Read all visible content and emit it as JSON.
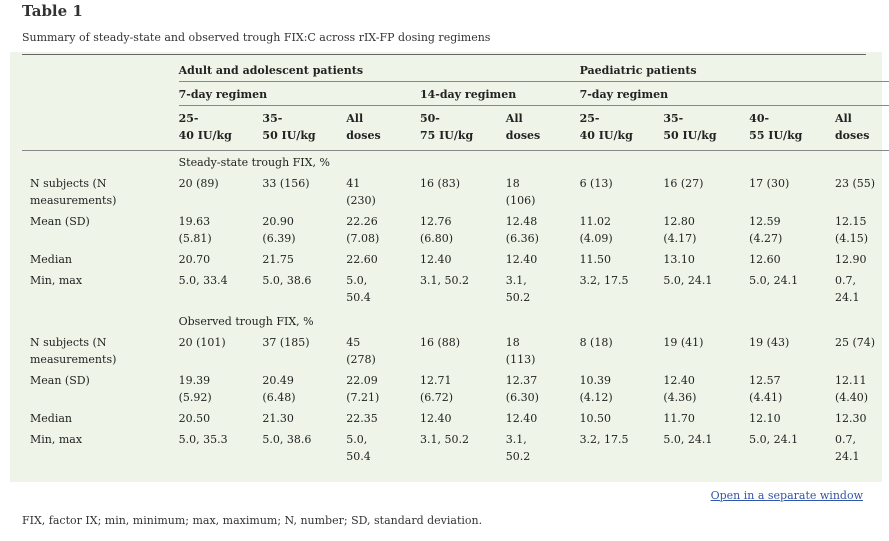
{
  "title": "Table 1",
  "caption": "Summary of steady-state and observed trough FIX:C across rIX-FP dosing regimens",
  "groups": {
    "adult": "Adult and adolescent patients",
    "paed": "Paediatric patients"
  },
  "regimens": {
    "adult_7": "7-day regimen",
    "adult_14": "14-day regimen",
    "paed_7": "7-day regimen"
  },
  "columns": [
    [
      "25-",
      "40 IU/kg"
    ],
    [
      "35-",
      "50 IU/kg"
    ],
    [
      "All",
      "doses"
    ],
    [
      "50-",
      "75 IU/kg"
    ],
    [
      "All",
      "doses"
    ],
    [
      "25-",
      "40 IU/kg"
    ],
    [
      "35-",
      "50 IU/kg"
    ],
    [
      "40-",
      "55 IU/kg"
    ],
    [
      "All",
      "doses"
    ]
  ],
  "sections": [
    {
      "heading": "Steady-state trough FIX, %",
      "rows": [
        {
          "label": [
            "N subjects (N",
            "measurements)"
          ],
          "cells": [
            [
              "20 (89)"
            ],
            [
              "33 (156)"
            ],
            [
              "41",
              "(230)"
            ],
            [
              "16 (83)"
            ],
            [
              "18",
              "(106)"
            ],
            [
              "6 (13)"
            ],
            [
              "16 (27)"
            ],
            [
              "17 (30)"
            ],
            [
              "23 (55)"
            ]
          ]
        },
        {
          "label": [
            "Mean (SD)"
          ],
          "cells": [
            [
              "19.63",
              "(5.81)"
            ],
            [
              "20.90",
              "(6.39)"
            ],
            [
              "22.26",
              "(7.08)"
            ],
            [
              "12.76",
              "(6.80)"
            ],
            [
              "12.48",
              "(6.36)"
            ],
            [
              "11.02",
              "(4.09)"
            ],
            [
              "12.80",
              "(4.17)"
            ],
            [
              "12.59",
              "(4.27)"
            ],
            [
              "12.15",
              "(4.15)"
            ]
          ]
        },
        {
          "label": [
            "Median"
          ],
          "cells": [
            [
              "20.70"
            ],
            [
              "21.75"
            ],
            [
              "22.60"
            ],
            [
              "12.40"
            ],
            [
              "12.40"
            ],
            [
              "11.50"
            ],
            [
              "13.10"
            ],
            [
              "12.60"
            ],
            [
              "12.90"
            ]
          ]
        },
        {
          "label": [
            "Min, max"
          ],
          "cells": [
            [
              "5.0, 33.4"
            ],
            [
              "5.0, 38.6"
            ],
            [
              "5.0,",
              "50.4"
            ],
            [
              "3.1, 50.2"
            ],
            [
              "3.1,",
              "50.2"
            ],
            [
              "3.2, 17.5"
            ],
            [
              "5.0, 24.1"
            ],
            [
              "5.0, 24.1"
            ],
            [
              "0.7,",
              "24.1"
            ]
          ]
        }
      ]
    },
    {
      "heading": "Observed trough FIX, %",
      "rows": [
        {
          "label": [
            "N subjects (N",
            "measurements)"
          ],
          "cells": [
            [
              "20 (101)"
            ],
            [
              "37 (185)"
            ],
            [
              "45",
              "(278)"
            ],
            [
              "16 (88)"
            ],
            [
              "18",
              "(113)"
            ],
            [
              "8 (18)"
            ],
            [
              "19 (41)"
            ],
            [
              "19 (43)"
            ],
            [
              "25 (74)"
            ]
          ]
        },
        {
          "label": [
            "Mean (SD)"
          ],
          "cells": [
            [
              "19.39",
              "(5.92)"
            ],
            [
              "20.49",
              "(6.48)"
            ],
            [
              "22.09",
              "(7.21)"
            ],
            [
              "12.71",
              "(6.72)"
            ],
            [
              "12.37",
              "(6.30)"
            ],
            [
              "10.39",
              "(4.12)"
            ],
            [
              "12.40",
              "(4.36)"
            ],
            [
              "12.57",
              "(4.41)"
            ],
            [
              "12.11",
              "(4.40)"
            ]
          ]
        },
        {
          "label": [
            "Median"
          ],
          "cells": [
            [
              "20.50"
            ],
            [
              "21.30"
            ],
            [
              "22.35"
            ],
            [
              "12.40"
            ],
            [
              "12.40"
            ],
            [
              "10.50"
            ],
            [
              "11.70"
            ],
            [
              "12.10"
            ],
            [
              "12.30"
            ]
          ]
        },
        {
          "label": [
            "Min, max"
          ],
          "cells": [
            [
              "5.0, 35.3"
            ],
            [
              "5.0, 38.6"
            ],
            [
              "5.0,",
              "50.4"
            ],
            [
              "3.1, 50.2"
            ],
            [
              "3.1,",
              "50.2"
            ],
            [
              "3.2, 17.5"
            ],
            [
              "5.0, 24.1"
            ],
            [
              "5.0, 24.1"
            ],
            [
              "0.7,",
              "24.1"
            ]
          ]
        }
      ]
    }
  ],
  "open_link": "Open in a separate window",
  "footnote": "FIX, factor IX; min, minimum; max, maximum; N, number; SD, standard deviation."
}
